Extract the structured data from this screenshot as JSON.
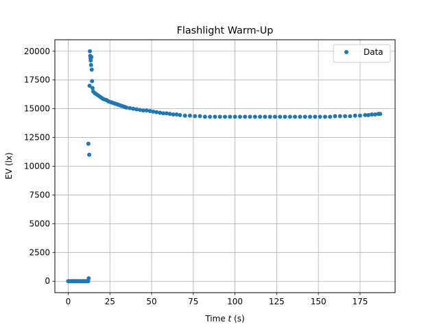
{
  "chart_data": {
    "type": "scatter",
    "title": "Flashlight Warm-Up",
    "xlabel_prefix": "Time ",
    "xlabel_var": "t",
    "xlabel_suffix": " (s)",
    "ylabel": "EV (lx)",
    "xlim": [
      -8,
      196
    ],
    "ylim": [
      -1000,
      21000
    ],
    "xticks": [
      0,
      25,
      50,
      75,
      100,
      125,
      150,
      175
    ],
    "yticks": [
      0,
      2500,
      5000,
      7500,
      10000,
      12500,
      15000,
      17500,
      20000
    ],
    "grid": true,
    "legend_position": "top-right",
    "marker_color": "#1f77b4",
    "series": [
      {
        "name": "Data",
        "x": [
          0,
          0.5,
          1,
          1.5,
          2,
          2.5,
          3,
          3.5,
          4,
          4.5,
          5,
          5.5,
          6,
          6.5,
          7,
          7.5,
          8,
          8.5,
          9,
          9.5,
          10,
          10.5,
          11,
          11.5,
          12,
          12.3,
          12.1,
          12.6,
          12.8,
          13.0,
          13.2,
          13.4,
          13.5,
          13.7,
          13.9,
          14.1,
          14.3,
          14.6,
          15,
          16,
          17,
          18,
          19,
          20,
          21,
          22,
          23,
          24,
          25,
          26,
          27,
          28,
          29,
          30,
          31,
          32,
          33,
          34,
          35,
          37,
          39,
          41,
          43,
          45,
          47,
          49,
          51,
          53,
          55,
          57,
          59,
          61,
          63,
          65,
          67,
          70,
          73,
          76,
          79,
          82,
          85,
          88,
          91,
          94,
          97,
          100,
          103,
          106,
          109,
          112,
          115,
          118,
          121,
          124,
          127,
          130,
          133,
          136,
          139,
          142,
          145,
          148,
          151,
          154,
          157,
          160,
          163,
          166,
          169,
          172,
          175,
          178,
          180,
          182,
          184,
          186,
          187
        ],
        "y": [
          0,
          0,
          0,
          0,
          0,
          0,
          0,
          0,
          0,
          0,
          0,
          0,
          0,
          0,
          0,
          0,
          0,
          0,
          0,
          0,
          0,
          0,
          0,
          0,
          0,
          250,
          11950,
          11000,
          17000,
          20000,
          19600,
          19400,
          19200,
          18800,
          19500,
          18400,
          17400,
          16800,
          16500,
          16350,
          16250,
          16150,
          16050,
          15950,
          15850,
          15800,
          15750,
          15650,
          15600,
          15550,
          15500,
          15450,
          15400,
          15350,
          15300,
          15250,
          15200,
          15150,
          15100,
          15050,
          15000,
          14950,
          14900,
          14850,
          14850,
          14800,
          14750,
          14700,
          14650,
          14600,
          14600,
          14550,
          14500,
          14500,
          14450,
          14400,
          14400,
          14350,
          14350,
          14300,
          14300,
          14300,
          14300,
          14300,
          14300,
          14300,
          14300,
          14300,
          14300,
          14300,
          14300,
          14300,
          14300,
          14300,
          14300,
          14300,
          14300,
          14300,
          14300,
          14300,
          14300,
          14300,
          14300,
          14300,
          14300,
          14350,
          14350,
          14350,
          14350,
          14400,
          14400,
          14450,
          14450,
          14500,
          14500,
          14550,
          14550
        ]
      }
    ]
  }
}
